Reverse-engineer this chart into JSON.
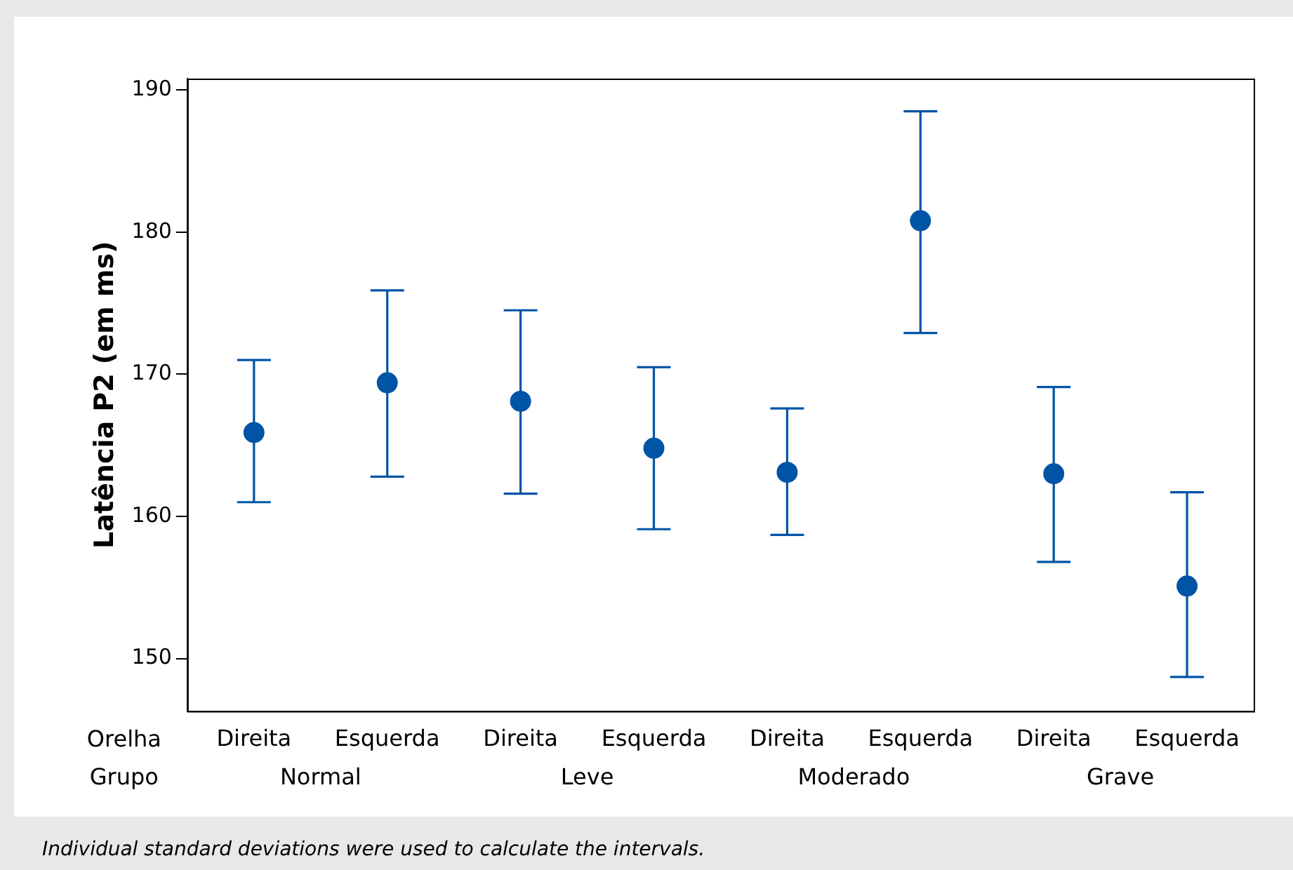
{
  "chart_data": {
    "type": "scatter",
    "ylabel": "Latência P2 (em ms)",
    "categories": [
      "Direita",
      "Esquerda",
      "Direita",
      "Esquerda",
      "Direita",
      "Esquerda",
      "Direita",
      "Esquerda"
    ],
    "values": [
      165.9,
      169.4,
      168.1,
      164.8,
      163.1,
      180.8,
      163.0,
      155.1
    ],
    "errors": [
      [
        161.0,
        171.0
      ],
      [
        162.8,
        175.9
      ],
      [
        161.6,
        174.5
      ],
      [
        159.1,
        170.5
      ],
      [
        158.7,
        167.6
      ],
      [
        172.9,
        188.5
      ],
      [
        156.8,
        169.1
      ],
      [
        148.7,
        161.7
      ]
    ],
    "color": "#0054a6",
    "marker": "circle",
    "grid": false,
    "legend": false,
    "ylim": [
      146.3,
      190.8
    ],
    "yticks": [
      150,
      160,
      170,
      180,
      190
    ],
    "annotations": [
      "Orelha",
      "Grupo",
      "Normal",
      "Leve",
      "Moderado",
      "Grave",
      "Individual standard deviations were used to calculate the intervals."
    ]
  }
}
